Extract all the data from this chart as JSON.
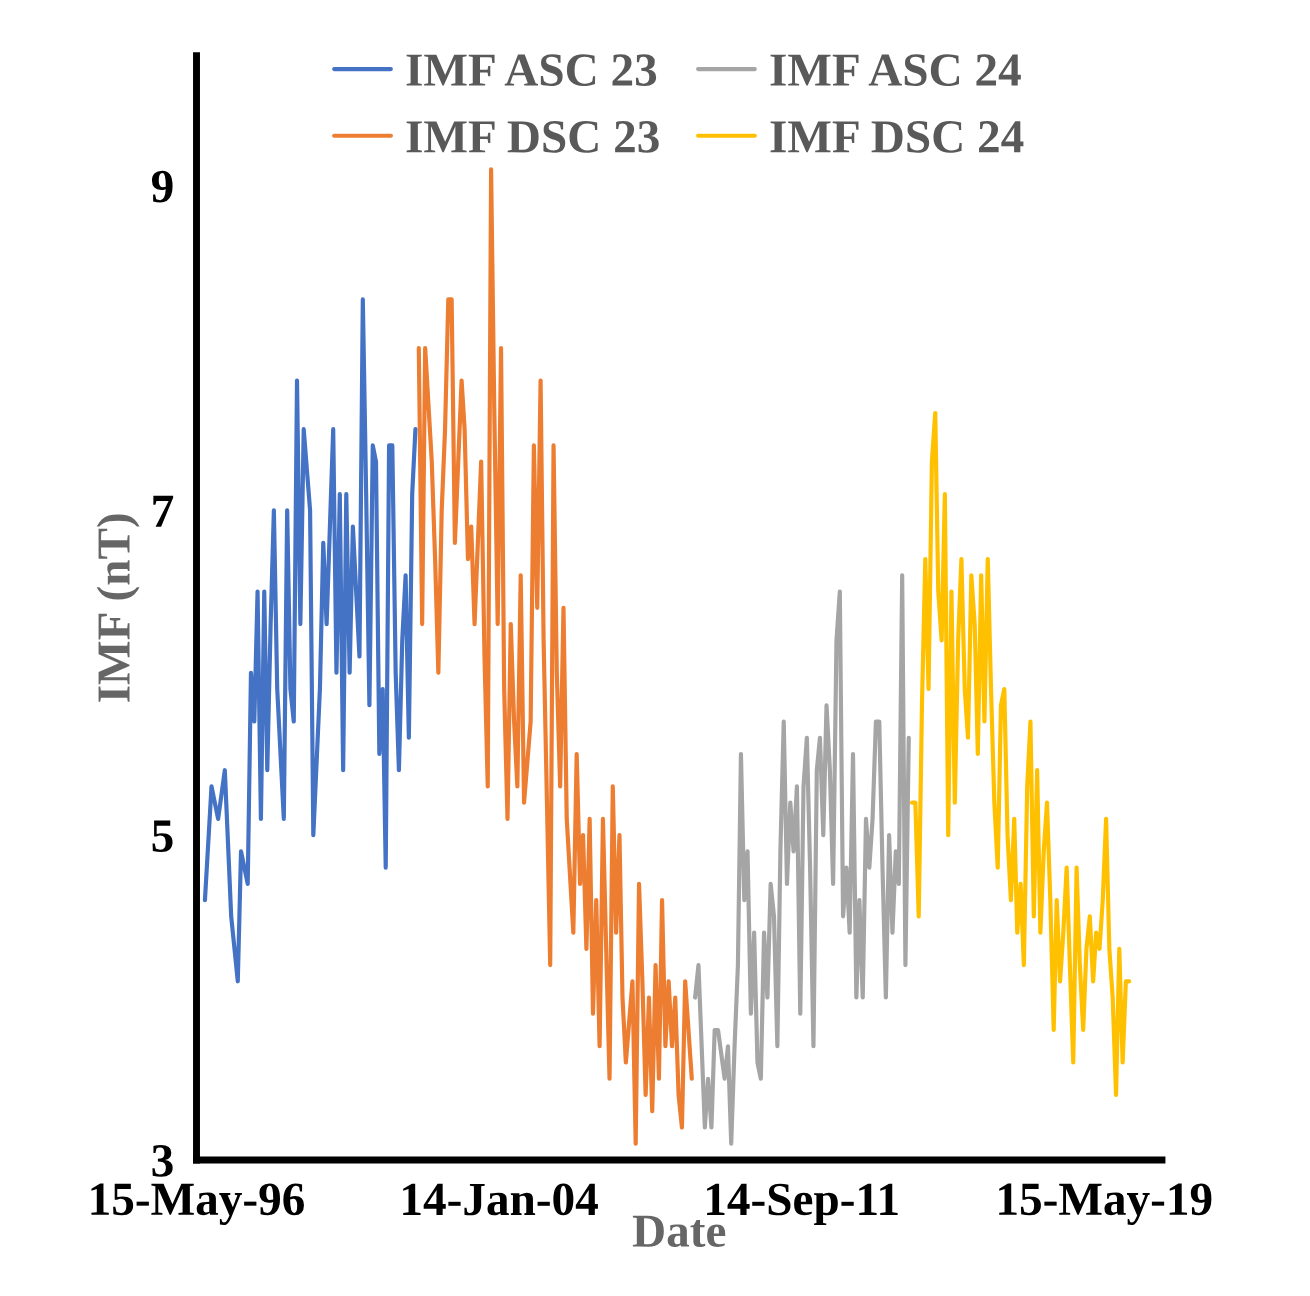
{
  "chart_data": {
    "type": "line",
    "xlabel": "Date",
    "ylabel": "IMF (nT)",
    "xlim": [
      "1996-05-15",
      "2020-10-30"
    ],
    "ylim": [
      3,
      9.8
    ],
    "yticks": [
      3,
      5,
      7,
      9
    ],
    "xticks": [
      {
        "value": "1996-05-15",
        "label": "15-May-96"
      },
      {
        "value": "2004-01-14",
        "label": "14-Jan-04"
      },
      {
        "value": "2011-09-14",
        "label": "14-Sep-11"
      },
      {
        "value": "2019-05-15",
        "label": "15-May-19"
      }
    ],
    "grid": false,
    "legend": "top",
    "marker": "none",
    "line_style": "solid",
    "series": [
      {
        "name": "IMF ASC 23",
        "color": "#4472c4",
        "x": [
          "1996-08",
          "1996-10",
          "1996-12",
          "1997-02",
          "1997-04",
          "1997-06",
          "1997-07",
          "1997-09",
          "1997-10",
          "1997-11",
          "1997-12",
          "1998-01",
          "1998-02",
          "1998-03",
          "1998-04",
          "1998-05",
          "1998-06",
          "1998-08",
          "1998-09",
          "1998-10",
          "1998-11",
          "1998-12",
          "1999-01",
          "1999-02",
          "1999-04",
          "1999-05",
          "1999-07",
          "1999-08",
          "1999-09",
          "1999-11",
          "1999-12",
          "2000-01",
          "2000-02",
          "2000-03",
          "2000-04",
          "2000-05",
          "2000-07",
          "2000-08",
          "2000-09",
          "2000-10",
          "2000-11",
          "2000-12",
          "2001-01",
          "2001-02",
          "2001-03",
          "2001-04",
          "2001-05",
          "2001-06",
          "2001-07",
          "2001-08",
          "2001-09",
          "2001-10",
          "2001-11",
          "2001-12"
        ],
        "values": [
          4.6,
          5.3,
          5.1,
          5.4,
          4.5,
          4.1,
          4.9,
          4.7,
          6.0,
          5.7,
          6.5,
          5.1,
          6.5,
          5.4,
          6.3,
          7.0,
          5.9,
          5.1,
          7.0,
          5.9,
          5.7,
          7.8,
          6.3,
          7.5,
          7.0,
          5.0,
          5.9,
          6.8,
          6.3,
          7.5,
          6.0,
          7.1,
          5.4,
          7.1,
          6.0,
          6.9,
          6.1,
          8.3,
          7.1,
          5.8,
          7.4,
          7.3,
          5.5,
          5.9,
          4.8,
          7.4,
          7.4,
          6.0,
          5.4,
          6.2,
          6.6,
          5.6,
          7.1,
          7.5
        ]
      },
      {
        "name": "IMF DSC 23",
        "color": "#ed7d31",
        "x": [
          "2002-01",
          "2002-02",
          "2002-03",
          "2002-05",
          "2002-06",
          "2002-07",
          "2002-08",
          "2002-09",
          "2002-10",
          "2002-11",
          "2002-12",
          "2003-02",
          "2003-03",
          "2003-04",
          "2003-05",
          "2003-06",
          "2003-08",
          "2003-09",
          "2003-10",
          "2003-11",
          "2003-12",
          "2004-01",
          "2004-02",
          "2004-03",
          "2004-04",
          "2004-05",
          "2004-06",
          "2004-07",
          "2004-08",
          "2004-09",
          "2004-11",
          "2004-12",
          "2005-01",
          "2005-02",
          "2005-03",
          "2005-04",
          "2005-05",
          "2005-06",
          "2005-07",
          "2005-08",
          "2005-09",
          "2005-10",
          "2005-12",
          "2006-01",
          "2006-02",
          "2006-03",
          "2006-04",
          "2006-05",
          "2006-06",
          "2006-07",
          "2006-08",
          "2006-09",
          "2006-10",
          "2006-11",
          "2006-12",
          "2007-01",
          "2007-02",
          "2007-03",
          "2007-04",
          "2007-06",
          "2007-07",
          "2007-08",
          "2007-09",
          "2007-10",
          "2007-11",
          "2007-12",
          "2008-01",
          "2008-02",
          "2008-03",
          "2008-04",
          "2008-05",
          "2008-06",
          "2008-07",
          "2008-08",
          "2008-09",
          "2008-10",
          "2008-12"
        ],
        "values": [
          8.0,
          6.3,
          8.0,
          7.3,
          6.7,
          6.0,
          7.0,
          7.5,
          8.3,
          8.3,
          6.8,
          7.8,
          7.5,
          6.7,
          6.9,
          6.3,
          7.3,
          6.1,
          5.3,
          9.1,
          7.6,
          6.3,
          8.0,
          5.9,
          5.1,
          6.3,
          5.7,
          5.3,
          6.6,
          5.2,
          5.7,
          7.4,
          6.4,
          7.8,
          6.2,
          5.2,
          4.2,
          7.4,
          6.0,
          5.3,
          6.4,
          5.1,
          4.4,
          5.5,
          4.7,
          5.0,
          4.3,
          5.1,
          3.9,
          4.6,
          3.7,
          5.1,
          4.3,
          3.5,
          5.3,
          4.4,
          5.0,
          4.0,
          3.6,
          4.1,
          3.1,
          4.7,
          4.1,
          3.4,
          4.0,
          3.3,
          4.2,
          3.5,
          4.6,
          3.7,
          4.1,
          3.7,
          4.0,
          3.4,
          3.2,
          4.1,
          3.5
        ]
      },
      {
        "name": "IMF ASC 24",
        "color": "#a5a5a5",
        "x": [
          "2009-01",
          "2009-02",
          "2009-04",
          "2009-05",
          "2009-06",
          "2009-07",
          "2009-08",
          "2009-10",
          "2009-11",
          "2009-12",
          "2010-01",
          "2010-02",
          "2010-03",
          "2010-04",
          "2010-05",
          "2010-06",
          "2010-07",
          "2010-08",
          "2010-09",
          "2010-10",
          "2010-11",
          "2010-12",
          "2011-01",
          "2011-02",
          "2011-03",
          "2011-04",
          "2011-05",
          "2011-06",
          "2011-07",
          "2011-08",
          "2011-09",
          "2011-10",
          "2011-11",
          "2011-12",
          "2012-01",
          "2012-02",
          "2012-03",
          "2012-04",
          "2012-05",
          "2012-06",
          "2012-07",
          "2012-08",
          "2012-09",
          "2012-10",
          "2012-11",
          "2012-12",
          "2013-01",
          "2013-02",
          "2013-03",
          "2013-04",
          "2013-05",
          "2013-06",
          "2013-07",
          "2013-08",
          "2013-09",
          "2013-10",
          "2013-11",
          "2013-12",
          "2014-01",
          "2014-02",
          "2014-03",
          "2014-04",
          "2014-05",
          "2014-06"
        ],
        "values": [
          4.0,
          4.2,
          3.2,
          3.5,
          3.2,
          3.8,
          3.8,
          3.5,
          3.7,
          3.1,
          3.7,
          4.2,
          5.5,
          4.6,
          4.9,
          3.9,
          4.4,
          3.6,
          3.5,
          4.4,
          4.0,
          4.7,
          4.5,
          3.7,
          4.9,
          5.7,
          4.7,
          5.2,
          4.9,
          5.3,
          3.9,
          5.3,
          5.6,
          4.8,
          3.7,
          5.4,
          5.6,
          5.0,
          5.8,
          5.4,
          4.7,
          6.2,
          6.5,
          4.5,
          4.8,
          4.4,
          5.5,
          4.0,
          4.6,
          4.0,
          5.1,
          4.8,
          5.1,
          5.7,
          5.7,
          4.8,
          4.0,
          5.0,
          4.4,
          4.9,
          4.7,
          6.6,
          4.2,
          5.6
        ]
      },
      {
        "name": "IMF DSC 24",
        "color": "#ffc000",
        "x": [
          "2014-07",
          "2014-08",
          "2014-09",
          "2014-10",
          "2014-11",
          "2014-12",
          "2015-01",
          "2015-02",
          "2015-03",
          "2015-04",
          "2015-05",
          "2015-06",
          "2015-07",
          "2015-08",
          "2015-09",
          "2015-10",
          "2015-11",
          "2015-12",
          "2016-01",
          "2016-02",
          "2016-03",
          "2016-04",
          "2016-05",
          "2016-06",
          "2016-07",
          "2016-08",
          "2016-09",
          "2016-10",
          "2016-11",
          "2016-12",
          "2017-01",
          "2017-02",
          "2017-03",
          "2017-04",
          "2017-05",
          "2017-06",
          "2017-07",
          "2017-08",
          "2017-09",
          "2017-10",
          "2017-11",
          "2017-12",
          "2018-01",
          "2018-02",
          "2018-03",
          "2018-04",
          "2018-05",
          "2018-06",
          "2018-07",
          "2018-08",
          "2018-09",
          "2018-10",
          "2018-11",
          "2018-12",
          "2019-01",
          "2019-02",
          "2019-03",
          "2019-04",
          "2019-05",
          "2019-06",
          "2019-07",
          "2019-08",
          "2019-09",
          "2019-10",
          "2019-11",
          "2019-12",
          "2020-01"
        ],
        "values": [
          5.2,
          5.2,
          4.5,
          5.8,
          6.7,
          5.9,
          7.3,
          7.6,
          6.5,
          6.2,
          7.1,
          5.0,
          6.5,
          5.2,
          6.2,
          6.7,
          5.9,
          5.6,
          6.6,
          6.3,
          5.5,
          6.6,
          5.7,
          6.7,
          5.9,
          5.2,
          4.8,
          5.8,
          5.9,
          5.0,
          4.6,
          5.1,
          4.4,
          4.7,
          4.2,
          5.3,
          5.7,
          4.5,
          5.4,
          4.4,
          4.9,
          5.2,
          4.6,
          3.8,
          4.6,
          4.1,
          4.4,
          4.8,
          4.2,
          3.6,
          4.8,
          4.2,
          3.8,
          4.3,
          4.5,
          4.1,
          4.4,
          4.3,
          4.6,
          5.1,
          4.3,
          4.0,
          3.4,
          4.3,
          3.6,
          4.1,
          4.1
        ]
      }
    ]
  }
}
